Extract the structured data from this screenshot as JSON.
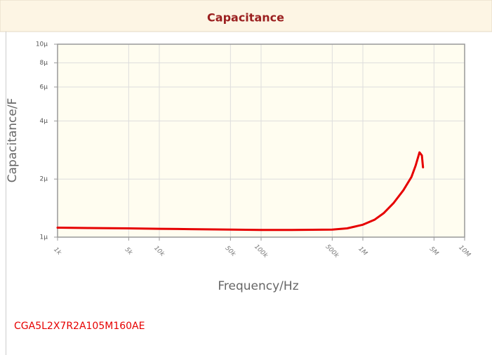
{
  "chart_data": {
    "type": "line",
    "title": "Capacitance",
    "xlabel": "Frequency/Hz",
    "ylabel": "Capacitance/F",
    "x_scale": "log",
    "y_scale": "log",
    "grid": true,
    "xlim": [
      1000,
      10000000
    ],
    "ylim": [
      1e-06,
      1e-05
    ],
    "xticks": [
      {
        "value": 1000,
        "label": "1k"
      },
      {
        "value": 5000,
        "label": "5k"
      },
      {
        "value": 10000,
        "label": "10k"
      },
      {
        "value": 50000,
        "label": "50k"
      },
      {
        "value": 100000,
        "label": "100k"
      },
      {
        "value": 500000,
        "label": "500k"
      },
      {
        "value": 1000000,
        "label": "1M"
      },
      {
        "value": 5000000,
        "label": "5M"
      },
      {
        "value": 10000000,
        "label": "10M"
      }
    ],
    "yticks": [
      {
        "value": 1e-06,
        "label": "1µ"
      },
      {
        "value": 2e-06,
        "label": "2µ"
      },
      {
        "value": 4e-06,
        "label": "4µ"
      },
      {
        "value": 6e-06,
        "label": "6µ"
      },
      {
        "value": 8e-06,
        "label": "8µ"
      },
      {
        "value": 1e-05,
        "label": "10µ"
      }
    ],
    "series": [
      {
        "name": "CGA5L2X7R2A105M160AE",
        "color": "#e60000",
        "x": [
          1000,
          2000,
          5000,
          10000,
          20000,
          50000,
          100000,
          200000,
          500000,
          700000,
          1000000,
          1300000,
          1600000,
          2000000,
          2500000,
          3000000,
          3300000,
          3600000,
          3800000,
          3900000
        ],
        "values": [
          1.12e-06,
          1.115e-06,
          1.11e-06,
          1.105e-06,
          1.1e-06,
          1.095e-06,
          1.09e-06,
          1.09e-06,
          1.095e-06,
          1.11e-06,
          1.16e-06,
          1.23e-06,
          1.33e-06,
          1.5e-06,
          1.75e-06,
          2.05e-06,
          2.35e-06,
          2.75e-06,
          2.65e-06,
          2.3e-06
        ]
      }
    ]
  }
}
